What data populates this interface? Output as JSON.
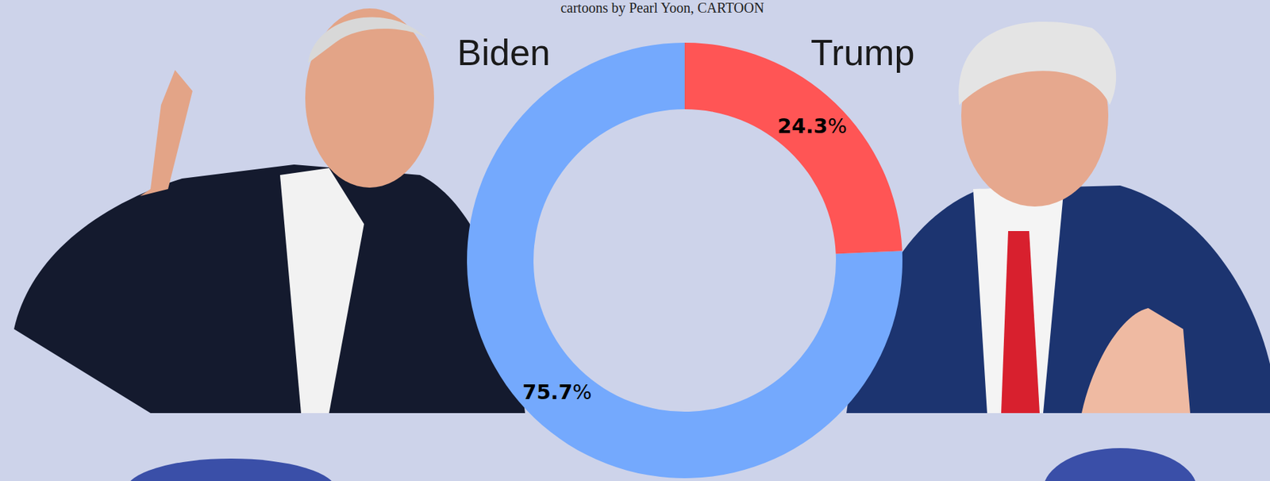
{
  "chart_data": {
    "type": "pie",
    "subtitle": "cartoons by Pearl Yoon, CARTOON",
    "categories": [
      "Biden",
      "Trump"
    ],
    "values": [
      75.7,
      24.3
    ],
    "value_labels": [
      "75.7%",
      "24.3%"
    ],
    "colors": [
      "#74a9fd",
      "#ff5555"
    ],
    "data_labels": true
  }
}
